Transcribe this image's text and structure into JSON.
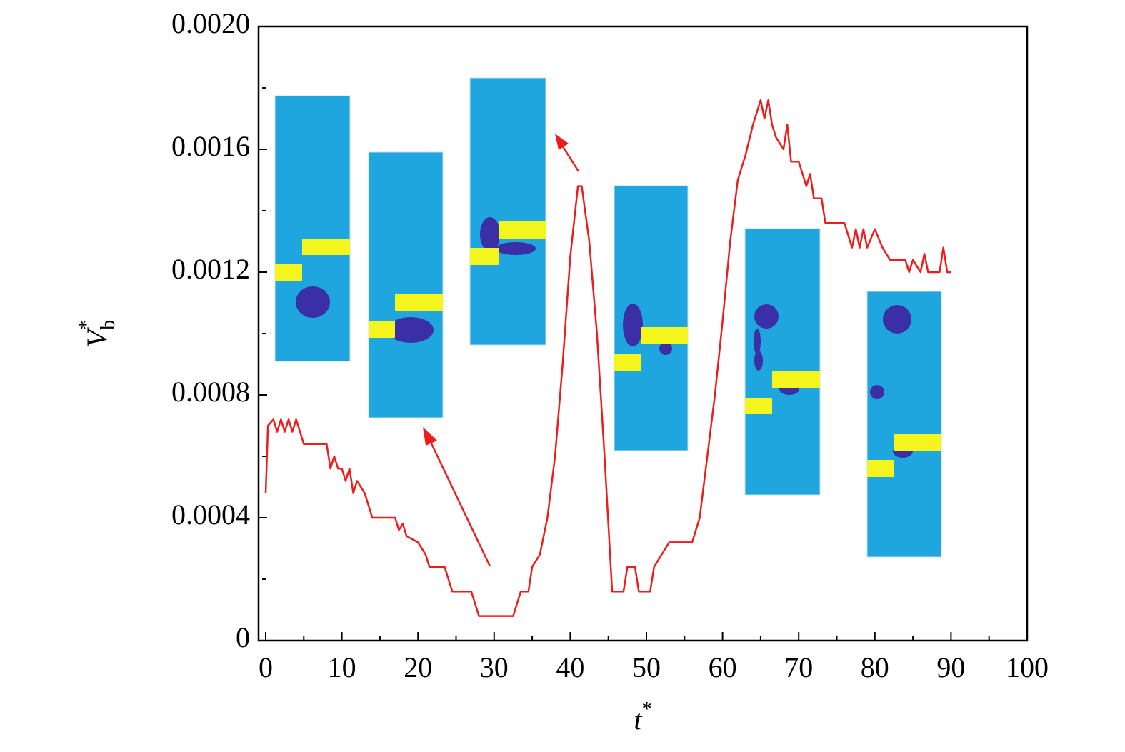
{
  "chart_data": {
    "type": "line",
    "x_label": {
      "text": "t",
      "superscript": "*"
    },
    "y_label": {
      "text": "V",
      "subscript": "b",
      "superscript": "*"
    },
    "color": "#ee1c1c",
    "x": [
      0,
      0.3,
      1,
      1.5,
      2,
      2.5,
      3,
      3.5,
      4,
      4.5,
      5,
      8,
      8.5,
      9,
      9.5,
      10,
      10.5,
      11,
      11.5,
      12,
      13,
      13.5,
      14,
      17,
      17.5,
      18,
      18.5,
      20,
      21,
      21.5,
      23.5,
      24,
      24.5,
      27,
      27.5,
      28,
      32.5,
      33,
      33.5,
      34.5,
      35,
      36,
      37,
      38,
      39,
      40,
      41,
      41.5,
      42.5,
      43.5,
      44.5,
      45.5,
      47,
      47.5,
      48.5,
      49,
      50.5,
      51,
      52,
      53,
      56,
      57,
      59,
      60,
      61,
      62,
      63,
      64,
      65,
      65.5,
      66,
      66.5,
      67,
      68,
      68.5,
      69,
      70,
      71,
      71.5,
      72,
      73,
      73.5,
      76,
      77,
      77.5,
      78,
      78.5,
      79,
      80,
      81,
      82,
      84,
      84.5,
      85,
      86,
      86.5,
      87,
      88.5,
      89,
      89.5,
      90
    ],
    "values": [
      0.00048,
      0.0007,
      0.00072,
      0.00068,
      0.00072,
      0.00068,
      0.00072,
      0.00068,
      0.00072,
      0.00068,
      0.00064,
      0.00064,
      0.00056,
      0.0006,
      0.00056,
      0.00056,
      0.00052,
      0.00056,
      0.00048,
      0.00052,
      0.00048,
      0.00044,
      0.0004,
      0.0004,
      0.00036,
      0.00038,
      0.00034,
      0.00032,
      0.00028,
      0.00024,
      0.00024,
      0.0002,
      0.00016,
      0.00016,
      0.00012,
      8e-05,
      8e-05,
      0.00012,
      0.00016,
      0.00016,
      0.00024,
      0.00028,
      0.0004,
      0.0006,
      0.0009,
      0.00125,
      0.00148,
      0.00148,
      0.0013,
      0.001,
      0.0006,
      0.00016,
      0.00016,
      0.00024,
      0.00024,
      0.00016,
      0.00016,
      0.00024,
      0.00028,
      0.00032,
      0.00032,
      0.0004,
      0.0008,
      0.00104,
      0.0013,
      0.0015,
      0.00158,
      0.00168,
      0.00176,
      0.0017,
      0.00176,
      0.00168,
      0.00164,
      0.0016,
      0.00168,
      0.00156,
      0.00156,
      0.00148,
      0.00152,
      0.00144,
      0.00144,
      0.00136,
      0.00136,
      0.00128,
      0.00134,
      0.00128,
      0.00134,
      0.00128,
      0.00134,
      0.00128,
      0.00124,
      0.00124,
      0.0012,
      0.00124,
      0.0012,
      0.00126,
      0.0012,
      0.0012,
      0.00128,
      0.0012,
      0.0012
    ],
    "xlim": [
      0,
      100
    ],
    "xticks": [
      0,
      10,
      20,
      30,
      40,
      50,
      60,
      70,
      80,
      90,
      100
    ],
    "xminor": [
      5,
      15,
      25,
      35,
      45,
      55,
      65,
      75,
      85,
      95
    ],
    "ylim": [
      0,
      0.002
    ],
    "yticks": [
      0,
      0.0004,
      0.0008,
      0.0012,
      0.0016,
      {
        "value": 0.002,
        "label": "0.0020"
      }
    ],
    "yminor": [
      0.0002,
      0.0006,
      0.001,
      0.0014,
      0.0018
    ]
  }
}
